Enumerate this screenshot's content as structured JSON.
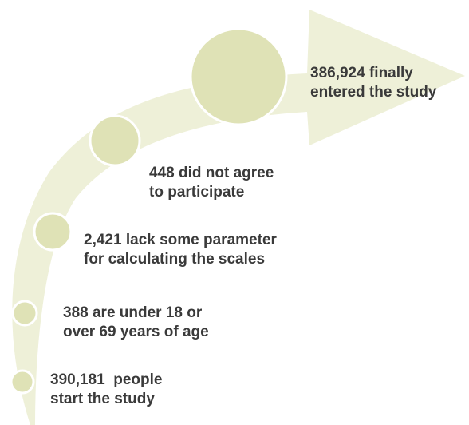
{
  "colors": {
    "arrow_fill": "#eef0d8",
    "circle_fill": "#dfe2b6",
    "circle_stroke": "#ffffff",
    "text": "#3a3a3a"
  },
  "steps": [
    {
      "line1": "390,181  people",
      "line2": "start the study"
    },
    {
      "line1": "388 are under 18 or",
      "line2": "over 69 years of age"
    },
    {
      "line1": "2,421 lack some parameter",
      "line2": "for calculating the scales"
    },
    {
      "line1": "448 did not agree",
      "line2": "to participate"
    },
    {
      "line1": "386,924 finally",
      "line2": "entered the study"
    }
  ]
}
